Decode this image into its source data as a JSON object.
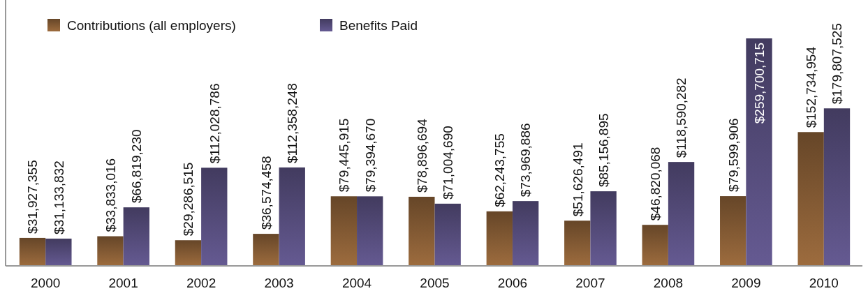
{
  "chart_data": {
    "type": "bar",
    "categories": [
      "2000",
      "2001",
      "2002",
      "2003",
      "2004",
      "2005",
      "2006",
      "2007",
      "2008",
      "2009",
      "2010"
    ],
    "series": [
      {
        "name": "Contributions (all employers)",
        "color": "#7a5430",
        "values": [
          31927355,
          33833016,
          29286515,
          36574458,
          79445915,
          78896694,
          62243755,
          51626491,
          46820068,
          79599906,
          152734954
        ],
        "value_labels": [
          "$31,927,355",
          "$33,833,016",
          "$29,286,515",
          "$36,574,458",
          "$79,445,915",
          "$78,896,694",
          "$62,243,755",
          "$51,626,491",
          "$46,820,068",
          "$79,599,906",
          "$152,734,954"
        ]
      },
      {
        "name": "Benefits Paid",
        "color": "#4f4672",
        "values": [
          31133832,
          66819230,
          112028786,
          112358248,
          79394670,
          71004690,
          73969886,
          85156895,
          118590282,
          259700715,
          179807525
        ],
        "value_labels": [
          "$31,133,832",
          "$66,819,230",
          "$112,028,786",
          "$112,358,248",
          "$79,394,670",
          "$71,004,690",
          "$73,969,886",
          "$85,156,895",
          "$118,590,282",
          "$259,700,715",
          "$179,807,525"
        ]
      }
    ],
    "legend": "top left",
    "grid": false
  }
}
